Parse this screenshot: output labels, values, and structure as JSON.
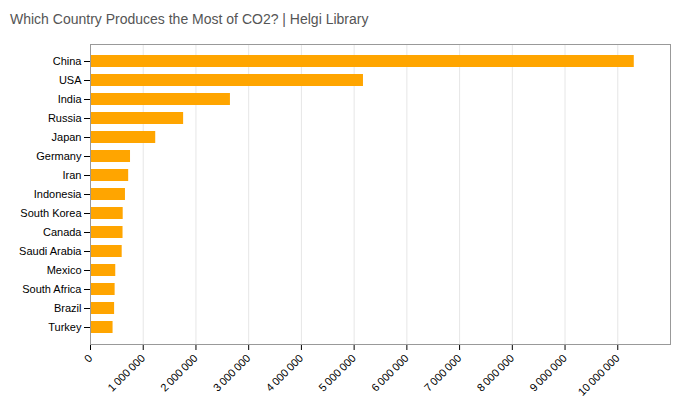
{
  "chart_data": {
    "type": "bar",
    "title": "Which Country Produces the Most of CO2? | Helgi Library",
    "orientation": "horizontal",
    "categories": [
      "China",
      "USA",
      "India",
      "Russia",
      "Japan",
      "Germany",
      "Iran",
      "Indonesia",
      "South Korea",
      "Canada",
      "Saudi Arabia",
      "Mexico",
      "South Africa",
      "Brazil",
      "Turkey"
    ],
    "values": [
      10313000,
      5177000,
      2654000,
      1766000,
      1237000,
      759000,
      724000,
      663000,
      620000,
      617000,
      601000,
      479000,
      467000,
      457000,
      428000
    ],
    "color": "#FFA500",
    "xlim": [
      0,
      11000000
    ],
    "xticks": [
      0,
      {
        "value": 1000000,
        "label": "1 000 000"
      },
      {
        "value": 2000000,
        "label": "2 000 000"
      },
      {
        "value": 3000000,
        "label": "3 000 000"
      },
      {
        "value": 4000000,
        "label": "4 000 000"
      },
      {
        "value": 5000000,
        "label": "5 000 000"
      },
      {
        "value": 6000000,
        "label": "6 000 000"
      },
      {
        "value": 7000000,
        "label": "7 000 000"
      },
      {
        "value": 8000000,
        "label": "8 000 000"
      },
      {
        "value": 9000000,
        "label": "9 000 000"
      },
      {
        "value": 10000000,
        "label": "10 000 000"
      }
    ],
    "grid": true
  }
}
